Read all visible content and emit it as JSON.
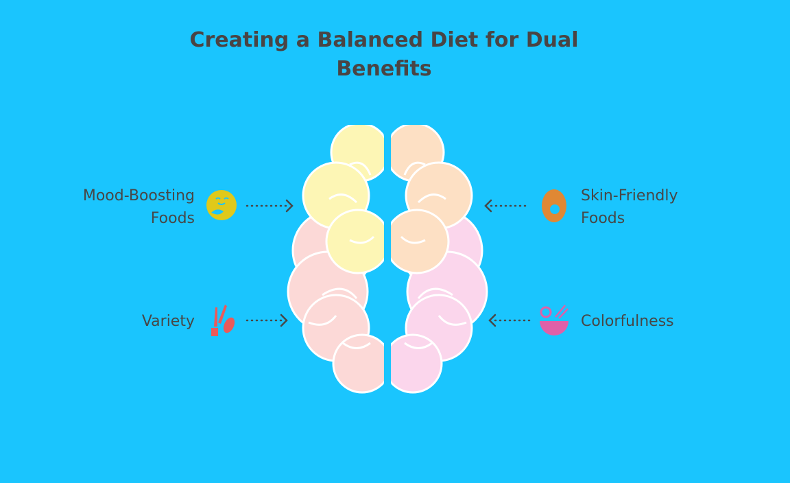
{
  "title": "Creating a Balanced Diet for Dual Benefits",
  "items": [
    {
      "label_line1": "Mood-Boosting",
      "label_line2": "Foods",
      "icon": "smiling-face-lemon-icon",
      "color": "#e0c91a"
    },
    {
      "label_line1": "Variety",
      "icon": "vegetables-icon",
      "color": "#ea5a5a"
    },
    {
      "label_line1": "Skin-Friendly",
      "label_line2": "Foods",
      "icon": "egg-icon",
      "color": "#e08834"
    },
    {
      "label_line1": "Colorfulness",
      "icon": "salad-bowl-icon",
      "color": "#e060a8"
    }
  ],
  "colors": {
    "background": "#1ac5fe",
    "brain_top_left": "#fdf6b5",
    "brain_bottom_left": "#fcd9d7",
    "brain_top_right": "#fde0c4",
    "brain_bottom_right": "#fbd6ec"
  }
}
